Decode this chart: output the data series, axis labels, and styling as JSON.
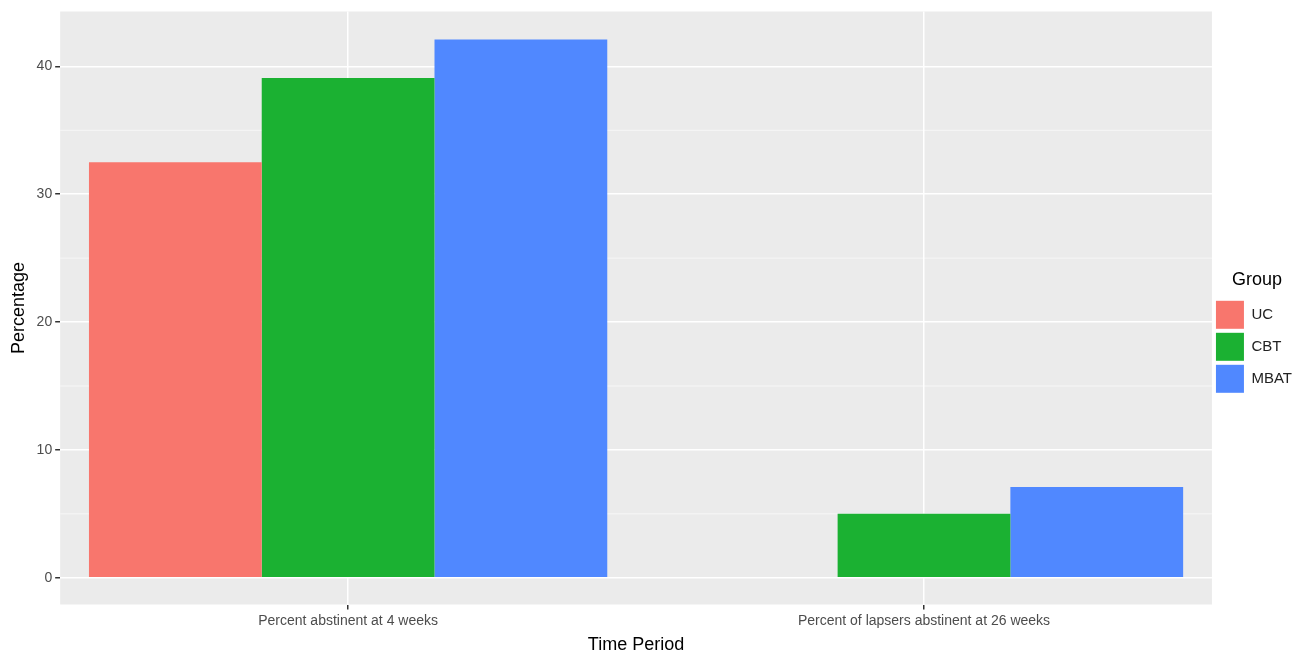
{
  "chart_data": {
    "type": "bar",
    "xlabel": "Time Period",
    "ylabel": "Percentage",
    "legend_title": "Group",
    "categories": [
      "Percent abstinent at 4 weeks",
      "Percent of lapsers abstinent at 26 weeks"
    ],
    "series": [
      {
        "name": "UC",
        "color": "#f8766d",
        "values": [
          32.5,
          0
        ]
      },
      {
        "name": "CBT",
        "color": "#1bb132",
        "values": [
          39.1,
          5.0
        ]
      },
      {
        "name": "MBAT",
        "color": "#5088ff",
        "values": [
          42.1,
          7.1
        ]
      }
    ],
    "ylim": [
      -2.1,
      44.3
    ],
    "yticks": [
      0,
      10,
      20,
      30,
      40
    ],
    "grid": true,
    "legend": "right"
  }
}
